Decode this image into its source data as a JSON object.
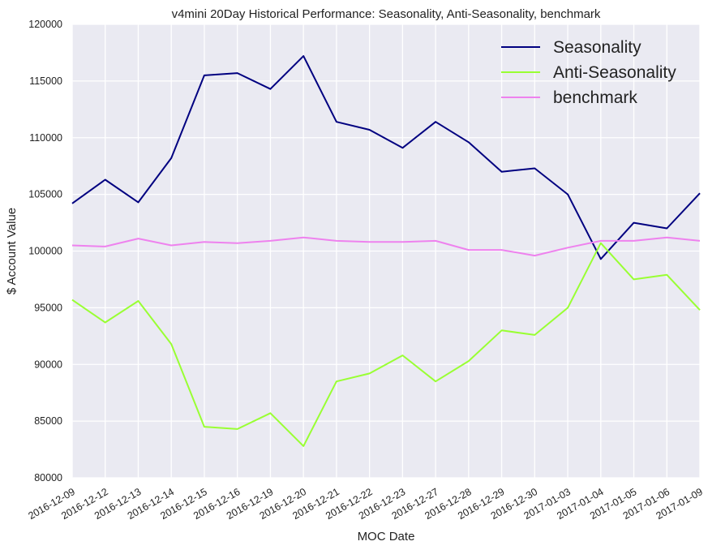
{
  "chart_data": {
    "type": "line",
    "title": "v4mini 20Day Historical Performance: Seasonality, Anti-Seasonality, benchmark",
    "xlabel": "MOC Date",
    "ylabel": "$ Account Value",
    "ylim": [
      80000,
      120000
    ],
    "yticks": [
      80000,
      85000,
      90000,
      95000,
      100000,
      105000,
      110000,
      115000,
      120000
    ],
    "grid": true,
    "legend_position": "top-right",
    "categories": [
      "2016-12-09",
      "2016-12-12",
      "2016-12-13",
      "2016-12-14",
      "2016-12-15",
      "2016-12-16",
      "2016-12-19",
      "2016-12-20",
      "2016-12-21",
      "2016-12-22",
      "2016-12-23",
      "2016-12-27",
      "2016-12-28",
      "2016-12-29",
      "2016-12-30",
      "2017-01-03",
      "2017-01-04",
      "2017-01-05",
      "2017-01-06",
      "2017-01-09"
    ],
    "series": [
      {
        "name": "Seasonality",
        "color": "#000080",
        "values": [
          104200,
          106300,
          104300,
          108200,
          115500,
          115700,
          114300,
          117200,
          111400,
          110700,
          109100,
          111400,
          109600,
          107000,
          107300,
          105000,
          99300,
          102500,
          102000,
          105100
        ]
      },
      {
        "name": "Anti-Seasonality",
        "color": "#99ff33",
        "values": [
          95700,
          93700,
          95600,
          91800,
          84500,
          84300,
          85700,
          82800,
          88500,
          89200,
          90800,
          88500,
          90300,
          93000,
          92600,
          95000,
          100700,
          97500,
          97900,
          94800
        ]
      },
      {
        "name": "benchmark",
        "color": "#ee82ee",
        "values": [
          100500,
          100400,
          101100,
          100500,
          100800,
          100700,
          100900,
          101200,
          100900,
          100800,
          100800,
          100900,
          100100,
          100100,
          99600,
          100300,
          100900,
          100900,
          101200,
          100900
        ]
      }
    ]
  }
}
